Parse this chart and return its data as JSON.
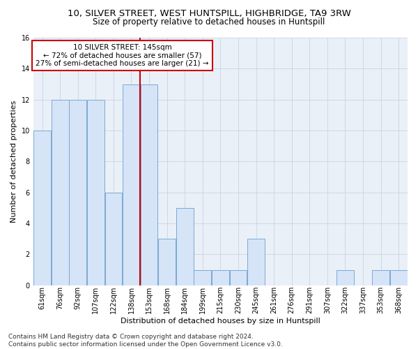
{
  "title": "10, SILVER STREET, WEST HUNTSPILL, HIGHBRIDGE, TA9 3RW",
  "subtitle": "Size of property relative to detached houses in Huntspill",
  "xlabel": "Distribution of detached houses by size in Huntspill",
  "ylabel": "Number of detached properties",
  "categories": [
    "61sqm",
    "76sqm",
    "92sqm",
    "107sqm",
    "122sqm",
    "138sqm",
    "153sqm",
    "168sqm",
    "184sqm",
    "199sqm",
    "215sqm",
    "230sqm",
    "245sqm",
    "261sqm",
    "276sqm",
    "291sqm",
    "307sqm",
    "322sqm",
    "337sqm",
    "353sqm",
    "368sqm"
  ],
  "values": [
    10,
    12,
    12,
    12,
    6,
    13,
    13,
    3,
    5,
    1,
    1,
    1,
    3,
    0,
    0,
    0,
    0,
    1,
    0,
    1,
    1
  ],
  "bar_color": "#d6e4f7",
  "bar_edge_color": "#7aaad4",
  "vline_color": "#cc0000",
  "vline_x_index": 6,
  "annotation_line1": "10 SILVER STREET: 145sqm",
  "annotation_line2": "← 72% of detached houses are smaller (57)",
  "annotation_line3": "27% of semi-detached houses are larger (21) →",
  "annotation_box_color": "#ffffff",
  "annotation_box_edge_color": "#cc0000",
  "footer_text": "Contains HM Land Registry data © Crown copyright and database right 2024.\nContains public sector information licensed under the Open Government Licence v3.0.",
  "ylim": [
    0,
    16
  ],
  "yticks": [
    0,
    2,
    4,
    6,
    8,
    10,
    12,
    14,
    16
  ],
  "background_color": "#ffffff",
  "plot_bg_color": "#eaf0f8",
  "grid_color": "#c8d4e4",
  "title_fontsize": 9.5,
  "subtitle_fontsize": 8.5,
  "axis_label_fontsize": 8,
  "tick_fontsize": 7,
  "footer_fontsize": 6.5,
  "annotation_fontsize": 7.5
}
